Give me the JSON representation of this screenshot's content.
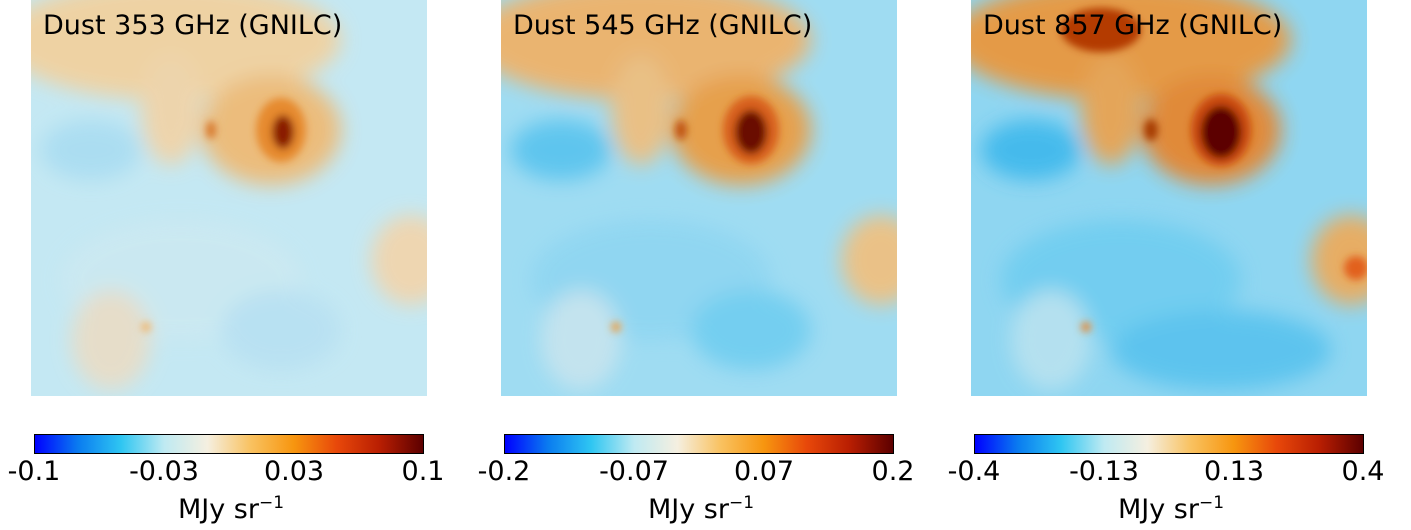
{
  "panels": [
    {
      "title": "Dust 353 GHz (GNILC)",
      "ticks": [
        "-0.1",
        "-0.03",
        "0.03",
        "0.1"
      ],
      "unit": "MJy sr",
      "unit_exp": "−1"
    },
    {
      "title": "Dust 545 GHz (GNILC)",
      "ticks": [
        "-0.2",
        "-0.07",
        "0.07",
        "0.2"
      ],
      "unit": "MJy sr",
      "unit_exp": "−1"
    },
    {
      "title": "Dust 857 GHz (GNILC)",
      "ticks": [
        "-0.4",
        "-0.13",
        "0.13",
        "0.4"
      ],
      "unit": "MJy sr",
      "unit_exp": "−1"
    }
  ],
  "colormap": [
    "#0000ff",
    "#0a7cf0",
    "#2fc6f2",
    "#bfeaf2",
    "#f5efe0",
    "#f9c261",
    "#f7960f",
    "#e8480a",
    "#b81e02",
    "#5c0000"
  ],
  "map_colors": {
    "background": "#bfe7f4",
    "cool": "#7fd2f0",
    "cooler": "#39b7ec",
    "warm": "#f5d6a8",
    "orange": "#f2a44a",
    "hot": "#d86516",
    "hottest": "#6a0800"
  }
}
